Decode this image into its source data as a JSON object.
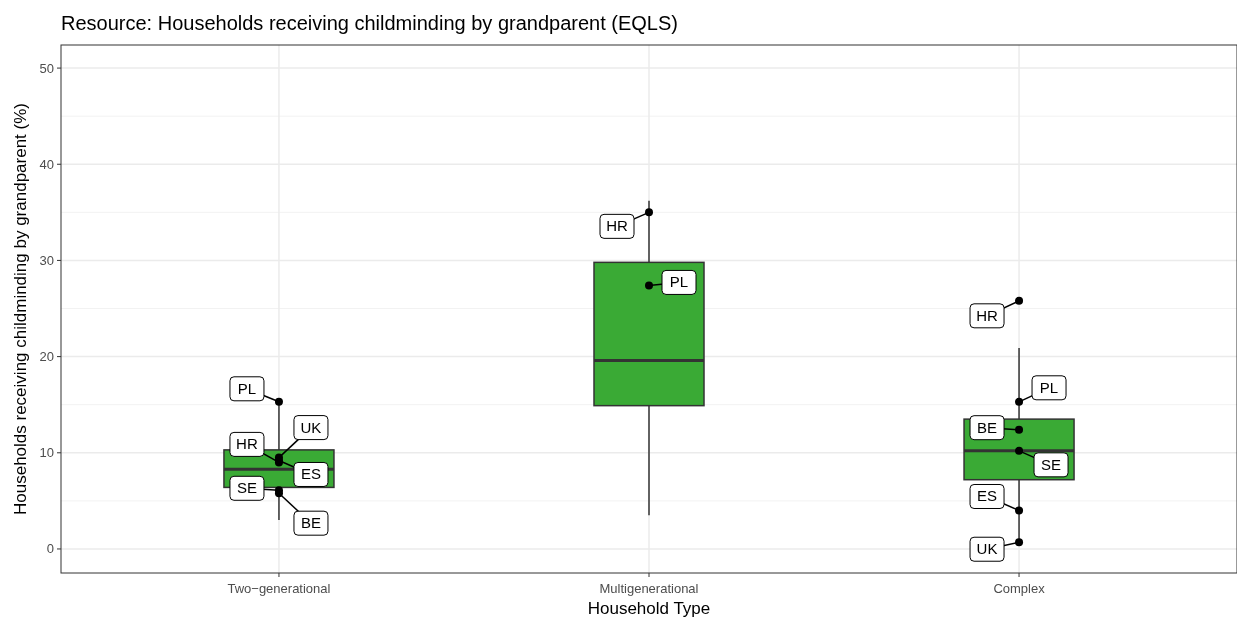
{
  "chart_data": {
    "type": "box",
    "title": "Resource: Households receiving childminding by grandparent (EQLS)",
    "xlabel": "Household Type",
    "ylabel": "Households receiving childminding by grandparent (%)",
    "categories": [
      "Two−generational",
      "Multigenerational",
      "Complex"
    ],
    "ylim": [
      -2.5,
      52.4
    ],
    "yticks": [
      0,
      10,
      20,
      30,
      40,
      50
    ],
    "grid": true,
    "series": [
      {
        "color": "#3aaa35",
        "boxes": [
          {
            "low": 3.0,
            "q1": 6.4,
            "median": 8.3,
            "q3": 10.3,
            "high": 15.3
          },
          {
            "low": 3.5,
            "q1": 14.9,
            "median": 19.6,
            "q3": 29.8,
            "high": 36.2
          },
          {
            "low": 0.7,
            "q1": 7.2,
            "median": 10.2,
            "q3": 13.5,
            "high": 20.9
          }
        ]
      },
      {
        "type": "scatter",
        "color": "#000000",
        "x": [
          "Two−generational",
          "Two−generational",
          "Two−generational",
          "Two−generational",
          "Two−generational",
          "Two−generational",
          "Multigenerational",
          "Multigenerational",
          "Complex",
          "Complex",
          "Complex",
          "Complex",
          "Complex",
          "Complex"
        ],
        "values": [
          15.3,
          9.5,
          9.0,
          9.2,
          6.1,
          5.8,
          35.0,
          27.4,
          25.8,
          15.3,
          12.4,
          10.2,
          4.0,
          0.7
        ],
        "value_labels": [
          "PL",
          "UK",
          "HR",
          "ES",
          "SE",
          "BE",
          "HR",
          "PL",
          "HR",
          "PL",
          "BE",
          "SE",
          "ES",
          "UK"
        ]
      }
    ]
  }
}
